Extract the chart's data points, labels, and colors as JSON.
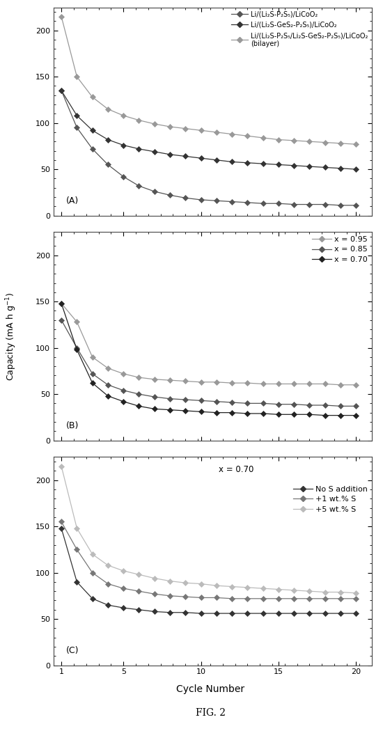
{
  "fig_width": 5.5,
  "fig_height": 10.5,
  "background_color": "#ffffff",
  "panel_A": {
    "label": "(A)",
    "cycles": [
      1,
      2,
      3,
      4,
      5,
      6,
      7,
      8,
      9,
      10,
      11,
      12,
      13,
      14,
      15,
      16,
      17,
      18,
      19,
      20
    ],
    "series": [
      {
        "label": "Li/(Li₂S-P₂S₅)/LiCoO₂",
        "color": "#555555",
        "linestyle": "-",
        "marker": "D",
        "markersize": 4,
        "values": [
          135,
          95,
          72,
          55,
          42,
          32,
          26,
          22,
          19,
          17,
          16,
          15,
          14,
          13,
          13,
          12,
          12,
          12,
          11,
          11
        ]
      },
      {
        "label": "Li/(Li₂S-GeS₂-P₂S₅)/LiCoO₂",
        "color": "#333333",
        "linestyle": "-",
        "marker": "D",
        "markersize": 4,
        "values": [
          135,
          108,
          92,
          82,
          76,
          72,
          69,
          66,
          64,
          62,
          60,
          58,
          57,
          56,
          55,
          54,
          53,
          52,
          51,
          50
        ]
      },
      {
        "label": "Li/(Li₂S-P₂S₅/Li₂S-GeS₂-P₂S₅)/LiCoO₂\n(bilayer)",
        "color": "#999999",
        "linestyle": "-",
        "marker": "D",
        "markersize": 4,
        "values": [
          215,
          150,
          128,
          115,
          108,
          103,
          99,
          96,
          94,
          92,
          90,
          88,
          86,
          84,
          82,
          81,
          80,
          79,
          78,
          77
        ]
      }
    ],
    "ylim": [
      0,
      225
    ],
    "yticks": [
      0,
      50,
      100,
      150,
      200
    ]
  },
  "panel_B": {
    "label": "(B)",
    "cycles": [
      1,
      2,
      3,
      4,
      5,
      6,
      7,
      8,
      9,
      10,
      11,
      12,
      13,
      14,
      15,
      16,
      17,
      18,
      19,
      20
    ],
    "series": [
      {
        "label": "x = 0.95",
        "color": "#999999",
        "linestyle": "-",
        "marker": "D",
        "markersize": 4,
        "values": [
          148,
          128,
          90,
          78,
          72,
          68,
          66,
          65,
          64,
          63,
          63,
          62,
          62,
          61,
          61,
          61,
          61,
          61,
          60,
          60
        ]
      },
      {
        "label": "x = 0.85",
        "color": "#555555",
        "linestyle": "-",
        "marker": "D",
        "markersize": 4,
        "values": [
          130,
          100,
          72,
          60,
          54,
          50,
          47,
          45,
          44,
          43,
          42,
          41,
          40,
          40,
          39,
          39,
          38,
          38,
          37,
          37
        ]
      },
      {
        "label": "x = 0.70",
        "color": "#222222",
        "linestyle": "-",
        "marker": "D",
        "markersize": 4,
        "values": [
          148,
          98,
          62,
          48,
          42,
          37,
          34,
          33,
          32,
          31,
          30,
          30,
          29,
          29,
          28,
          28,
          28,
          27,
          27,
          27
        ]
      }
    ],
    "ylim": [
      0,
      225
    ],
    "yticks": [
      0,
      50,
      100,
      150,
      200
    ]
  },
  "panel_C": {
    "label": "(C)",
    "text_annotation": "x = 0.70",
    "cycles": [
      1,
      2,
      3,
      4,
      5,
      6,
      7,
      8,
      9,
      10,
      11,
      12,
      13,
      14,
      15,
      16,
      17,
      18,
      19,
      20
    ],
    "series": [
      {
        "label": "No S addition",
        "color": "#333333",
        "linestyle": "-",
        "marker": "D",
        "markersize": 4,
        "values": [
          148,
          90,
          72,
          65,
          62,
          60,
          58,
          57,
          57,
          56,
          56,
          56,
          56,
          56,
          56,
          56,
          56,
          56,
          56,
          56
        ]
      },
      {
        "label": "+1 wt.% S",
        "color": "#777777",
        "linestyle": "-",
        "marker": "D",
        "markersize": 4,
        "values": [
          155,
          125,
          100,
          88,
          83,
          80,
          77,
          75,
          74,
          73,
          73,
          72,
          72,
          72,
          72,
          72,
          72,
          72,
          72,
          72
        ]
      },
      {
        "label": "+5 wt.% S",
        "color": "#bbbbbb",
        "linestyle": "-",
        "marker": "D",
        "markersize": 4,
        "values": [
          215,
          148,
          120,
          108,
          102,
          98,
          94,
          91,
          89,
          88,
          86,
          85,
          84,
          83,
          82,
          81,
          80,
          79,
          79,
          78
        ]
      }
    ],
    "ylim": [
      0,
      225
    ],
    "yticks": [
      0,
      50,
      100,
      150,
      200
    ],
    "xlabel": "Cycle Number",
    "fig_label": "FIG. 2"
  }
}
